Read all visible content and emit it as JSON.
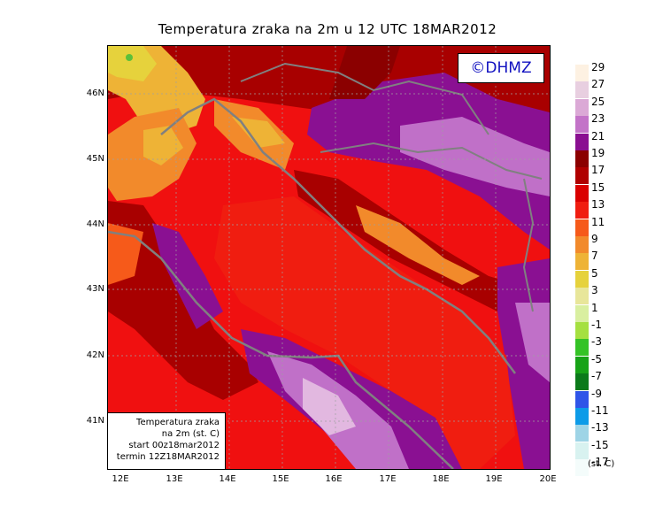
{
  "title": "Temperatura zraka na 2m u 12 UTC 18MAR2012",
  "copyright": "©DHMZ",
  "infobox": {
    "line1": "Temperatura zraka",
    "line2": "na 2m (st. C)",
    "line3": "start 00z18mar2012",
    "line4": "termin 12Z18MAR2012"
  },
  "lat_labels": [
    "46N",
    "45N",
    "44N",
    "43N",
    "42N",
    "41N"
  ],
  "lon_labels": [
    "12E",
    "13E",
    "14E",
    "15E",
    "16E",
    "17E",
    "18E",
    "19E",
    "20E"
  ],
  "legend": {
    "unit": "(st. C)",
    "items": [
      {
        "label": "29",
        "color": "#fdf1e2"
      },
      {
        "label": "27",
        "color": "#e8cfe0"
      },
      {
        "label": "25",
        "color": "#dba9d6"
      },
      {
        "label": "23",
        "color": "#c373c8"
      },
      {
        "label": "21",
        "color": "#8a0f91"
      },
      {
        "label": "19",
        "color": "#8b0000"
      },
      {
        "label": "17",
        "color": "#b00000"
      },
      {
        "label": "15",
        "color": "#da0000"
      },
      {
        "label": "13",
        "color": "#f01d10"
      },
      {
        "label": "11",
        "color": "#f65a1a"
      },
      {
        "label": "9",
        "color": "#f28a2b"
      },
      {
        "label": "7",
        "color": "#eeb336"
      },
      {
        "label": "5",
        "color": "#e6d23c"
      },
      {
        "label": "3",
        "color": "#e8e69a"
      },
      {
        "label": "1",
        "color": "#d9efa0"
      },
      {
        "label": "-1",
        "color": "#a5e040"
      },
      {
        "label": "-3",
        "color": "#34c326"
      },
      {
        "label": "-5",
        "color": "#17a317"
      },
      {
        "label": "-7",
        "color": "#0b7a1a"
      },
      {
        "label": "-9",
        "color": "#2f55e8"
      },
      {
        "label": "-11",
        "color": "#0d9be8"
      },
      {
        "label": "-13",
        "color": "#9ed4e6"
      },
      {
        "label": "-15",
        "color": "#d8f2f0"
      },
      {
        "label": "-17",
        "color": "#f4fcfb"
      }
    ]
  }
}
